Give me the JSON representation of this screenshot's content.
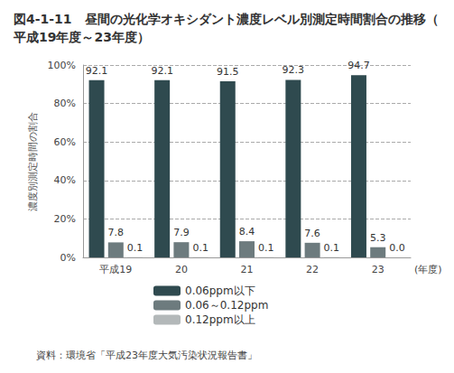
{
  "chart_data": {
    "type": "bar",
    "title": "図4-1-11　昼間の光化学オキシダント濃度レベル別測定時間割合の推移（平成19年度～23年度）",
    "xlabel": "(年度)",
    "ylabel": "濃度別測定時間の割合",
    "categories": [
      "平成19",
      "20",
      "21",
      "22",
      "23"
    ],
    "series": [
      {
        "name": "0.06ppm以下",
        "color": "#2f4a4f",
        "values": [
          92.1,
          92.1,
          91.5,
          92.3,
          94.7
        ]
      },
      {
        "name": "0.06～0.12ppm",
        "color": "#6d7b7e",
        "values": [
          7.8,
          7.9,
          8.4,
          7.6,
          5.3
        ]
      },
      {
        "name": "0.12ppm以上",
        "color": "#b3b8b9",
        "values": [
          0.1,
          0.1,
          0.1,
          0.1,
          0
        ],
        "value_labels": [
          "0.1",
          "0.1",
          "0.1",
          "0.1",
          "0.0"
        ]
      }
    ],
    "ylim": [
      0,
      100
    ],
    "yticks": [
      {
        "value": 0,
        "label": "0%"
      },
      {
        "value": 20,
        "label": "20%"
      },
      {
        "value": 40,
        "label": "40%"
      },
      {
        "value": 60,
        "label": "60%"
      },
      {
        "value": 80,
        "label": "80%"
      },
      {
        "value": 100,
        "label": "100%"
      }
    ],
    "grid": true,
    "legend": "bottom",
    "data_labels": true,
    "annotations": [
      "資料：環境省「平成23年度大気汚染状況報告書」"
    ]
  }
}
